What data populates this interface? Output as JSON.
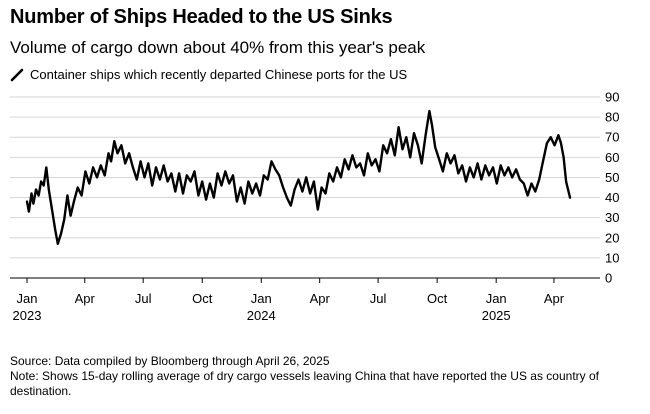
{
  "title": "Number of Ships Headed to the US Sinks",
  "subtitle": "Volume of cargo down about 40% from this year's peak",
  "source": "Source: Data compiled by Bloomberg through April 26, 2025",
  "note": "Note: Shows 15-day rolling average of dry cargo vessels leaving China that have reported the US as country of destination.",
  "chart_data": {
    "type": "line",
    "title": "Number of Ships Headed to the US Sinks",
    "subtitle": "Volume of cargo down about 40% from this year's peak",
    "ylabel": "",
    "xlabel": "",
    "ylim": [
      0,
      90
    ],
    "yticks": [
      0,
      10,
      20,
      30,
      40,
      50,
      60,
      70,
      80,
      90
    ],
    "y_axis_position": "right",
    "grid": "horizontal",
    "legend": "top-left",
    "xlim": [
      "2023-01-01",
      "2025-04-26"
    ],
    "xticks": [
      {
        "date": "2023-01-01",
        "label": "Jan",
        "year": "2023"
      },
      {
        "date": "2023-04-01",
        "label": "Apr",
        "year": ""
      },
      {
        "date": "2023-07-01",
        "label": "Jul",
        "year": ""
      },
      {
        "date": "2023-10-01",
        "label": "Oct",
        "year": ""
      },
      {
        "date": "2024-01-01",
        "label": "Jan",
        "year": "2024"
      },
      {
        "date": "2024-04-01",
        "label": "Apr",
        "year": ""
      },
      {
        "date": "2024-07-01",
        "label": "Jul",
        "year": ""
      },
      {
        "date": "2024-10-01",
        "label": "Oct",
        "year": ""
      },
      {
        "date": "2025-01-01",
        "label": "Jan",
        "year": "2025"
      },
      {
        "date": "2025-04-01",
        "label": "Apr",
        "year": ""
      }
    ],
    "series": [
      {
        "name": "Container ships which recently departed Chinese ports for the US",
        "color": "#000000",
        "points": [
          [
            "2023-01-01",
            38
          ],
          [
            "2023-01-04",
            33
          ],
          [
            "2023-01-08",
            42
          ],
          [
            "2023-01-11",
            37
          ],
          [
            "2023-01-15",
            44
          ],
          [
            "2023-01-19",
            41
          ],
          [
            "2023-01-23",
            48
          ],
          [
            "2023-01-27",
            46
          ],
          [
            "2023-01-31",
            55
          ],
          [
            "2023-02-04",
            44
          ],
          [
            "2023-02-09",
            34
          ],
          [
            "2023-02-14",
            24
          ],
          [
            "2023-02-18",
            17
          ],
          [
            "2023-02-23",
            22
          ],
          [
            "2023-02-28",
            29
          ],
          [
            "2023-03-05",
            41
          ],
          [
            "2023-03-10",
            31
          ],
          [
            "2023-03-15",
            38
          ],
          [
            "2023-03-21",
            45
          ],
          [
            "2023-03-27",
            41
          ],
          [
            "2023-04-02",
            53
          ],
          [
            "2023-04-08",
            47
          ],
          [
            "2023-04-14",
            55
          ],
          [
            "2023-04-20",
            50
          ],
          [
            "2023-04-26",
            56
          ],
          [
            "2023-05-02",
            51
          ],
          [
            "2023-05-08",
            62
          ],
          [
            "2023-05-12",
            58
          ],
          [
            "2023-05-17",
            68
          ],
          [
            "2023-05-22",
            62
          ],
          [
            "2023-05-28",
            66
          ],
          [
            "2023-06-03",
            57
          ],
          [
            "2023-06-09",
            62
          ],
          [
            "2023-06-15",
            55
          ],
          [
            "2023-06-21",
            49
          ],
          [
            "2023-06-27",
            58
          ],
          [
            "2023-07-03",
            50
          ],
          [
            "2023-07-09",
            57
          ],
          [
            "2023-07-15",
            46
          ],
          [
            "2023-07-21",
            55
          ],
          [
            "2023-07-27",
            49
          ],
          [
            "2023-08-02",
            56
          ],
          [
            "2023-08-08",
            48
          ],
          [
            "2023-08-14",
            52
          ],
          [
            "2023-08-20",
            43
          ],
          [
            "2023-08-26",
            52
          ],
          [
            "2023-09-01",
            42
          ],
          [
            "2023-09-07",
            51
          ],
          [
            "2023-09-13",
            48
          ],
          [
            "2023-09-19",
            53
          ],
          [
            "2023-09-25",
            41
          ],
          [
            "2023-10-01",
            48
          ],
          [
            "2023-10-07",
            39
          ],
          [
            "2023-10-13",
            47
          ],
          [
            "2023-10-19",
            40
          ],
          [
            "2023-10-25",
            52
          ],
          [
            "2023-10-31",
            46
          ],
          [
            "2023-11-06",
            53
          ],
          [
            "2023-11-12",
            47
          ],
          [
            "2023-11-18",
            51
          ],
          [
            "2023-11-24",
            38
          ],
          [
            "2023-11-30",
            45
          ],
          [
            "2023-12-06",
            37
          ],
          [
            "2023-12-12",
            48
          ],
          [
            "2023-12-18",
            42
          ],
          [
            "2023-12-24",
            47
          ],
          [
            "2023-12-30",
            41
          ],
          [
            "2024-01-05",
            51
          ],
          [
            "2024-01-11",
            49
          ],
          [
            "2024-01-17",
            58
          ],
          [
            "2024-01-23",
            54
          ],
          [
            "2024-01-29",
            51
          ],
          [
            "2024-02-04",
            45
          ],
          [
            "2024-02-10",
            40
          ],
          [
            "2024-02-16",
            36
          ],
          [
            "2024-02-22",
            44
          ],
          [
            "2024-02-28",
            49
          ],
          [
            "2024-03-05",
            43
          ],
          [
            "2024-03-11",
            50
          ],
          [
            "2024-03-17",
            42
          ],
          [
            "2024-03-23",
            48
          ],
          [
            "2024-03-29",
            34
          ],
          [
            "2024-04-04",
            45
          ],
          [
            "2024-04-10",
            42
          ],
          [
            "2024-04-16",
            52
          ],
          [
            "2024-04-22",
            48
          ],
          [
            "2024-04-28",
            55
          ],
          [
            "2024-05-04",
            50
          ],
          [
            "2024-05-10",
            59
          ],
          [
            "2024-05-16",
            54
          ],
          [
            "2024-05-22",
            61
          ],
          [
            "2024-05-28",
            55
          ],
          [
            "2024-06-03",
            57
          ],
          [
            "2024-06-09",
            51
          ],
          [
            "2024-06-15",
            62
          ],
          [
            "2024-06-21",
            56
          ],
          [
            "2024-06-27",
            59
          ],
          [
            "2024-07-03",
            53
          ],
          [
            "2024-07-09",
            66
          ],
          [
            "2024-07-15",
            62
          ],
          [
            "2024-07-21",
            69
          ],
          [
            "2024-07-27",
            61
          ],
          [
            "2024-08-02",
            75
          ],
          [
            "2024-08-08",
            64
          ],
          [
            "2024-08-14",
            70
          ],
          [
            "2024-08-20",
            60
          ],
          [
            "2024-08-26",
            72
          ],
          [
            "2024-09-01",
            66
          ],
          [
            "2024-09-07",
            57
          ],
          [
            "2024-09-13",
            71
          ],
          [
            "2024-09-19",
            83
          ],
          [
            "2024-09-23",
            76
          ],
          [
            "2024-09-28",
            65
          ],
          [
            "2024-10-04",
            59
          ],
          [
            "2024-10-10",
            53
          ],
          [
            "2024-10-16",
            62
          ],
          [
            "2024-10-22",
            57
          ],
          [
            "2024-10-28",
            61
          ],
          [
            "2024-11-03",
            52
          ],
          [
            "2024-11-09",
            56
          ],
          [
            "2024-11-15",
            48
          ],
          [
            "2024-11-21",
            55
          ],
          [
            "2024-11-27",
            50
          ],
          [
            "2024-12-03",
            57
          ],
          [
            "2024-12-09",
            49
          ],
          [
            "2024-12-15",
            56
          ],
          [
            "2024-12-21",
            51
          ],
          [
            "2024-12-27",
            55
          ],
          [
            "2025-01-02",
            47
          ],
          [
            "2025-01-08",
            56
          ],
          [
            "2025-01-14",
            51
          ],
          [
            "2025-01-20",
            55
          ],
          [
            "2025-01-26",
            50
          ],
          [
            "2025-02-01",
            54
          ],
          [
            "2025-02-07",
            49
          ],
          [
            "2025-02-13",
            47
          ],
          [
            "2025-02-19",
            41
          ],
          [
            "2025-02-25",
            47
          ],
          [
            "2025-03-03",
            43
          ],
          [
            "2025-03-09",
            49
          ],
          [
            "2025-03-15",
            58
          ],
          [
            "2025-03-21",
            67
          ],
          [
            "2025-03-27",
            70
          ],
          [
            "2025-04-02",
            66
          ],
          [
            "2025-04-08",
            71
          ],
          [
            "2025-04-12",
            67
          ],
          [
            "2025-04-16",
            60
          ],
          [
            "2025-04-20",
            48
          ],
          [
            "2025-04-26",
            40
          ]
        ]
      }
    ]
  }
}
